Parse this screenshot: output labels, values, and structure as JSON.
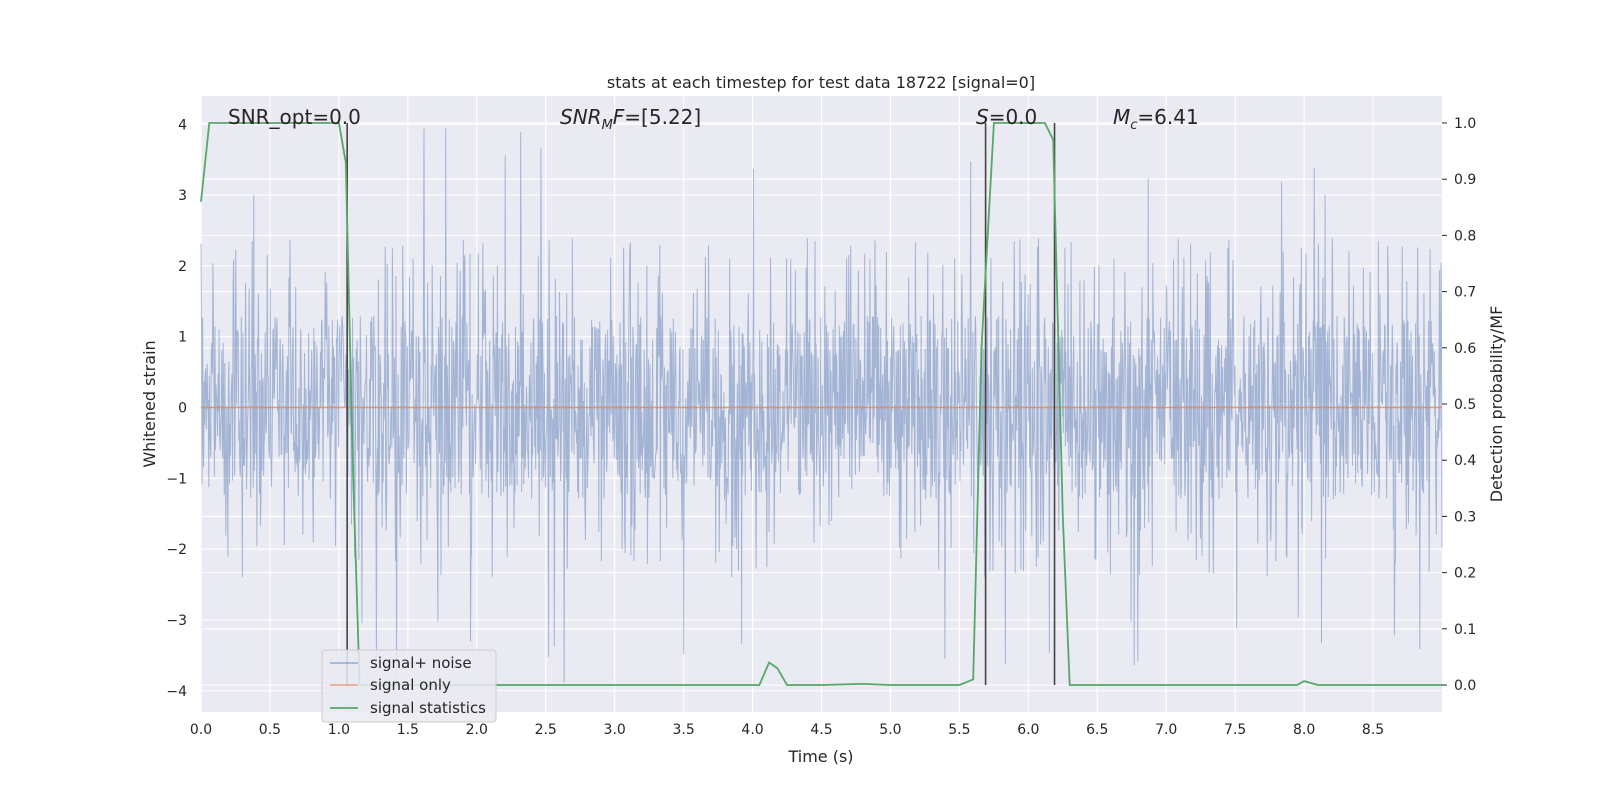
{
  "chart_data": {
    "type": "line",
    "title": "stats at each timestep for test data 18722 [signal=0]",
    "xlabel": "Time (s)",
    "ylabel": "Whitened strain",
    "y2label": "Detection probability/MF",
    "xlim": [
      0.0,
      9.0
    ],
    "ylim": [
      -4.3,
      4.4
    ],
    "y2lim": [
      -0.048,
      1.048
    ],
    "grid": true,
    "legend_position": "lower-left",
    "x_ticks": [
      "0.0",
      "0.5",
      "1.0",
      "1.5",
      "2.0",
      "2.5",
      "3.0",
      "3.5",
      "4.0",
      "4.5",
      "5.0",
      "5.5",
      "6.0",
      "6.5",
      "7.0",
      "7.5",
      "8.0",
      "8.5"
    ],
    "y_ticks": [
      "4",
      "3",
      "2",
      "1",
      "0",
      "−1",
      "−2",
      "−3",
      "−4"
    ],
    "y2_ticks": [
      "1.0",
      "0.9",
      "0.8",
      "0.7",
      "0.6",
      "0.5",
      "0.4",
      "0.3",
      "0.2",
      "0.1",
      "0.0"
    ],
    "annotations": {
      "snr_opt": "SNR_opt=0.0",
      "snr_mf_main": "SNR",
      "snr_mf_sub": "M",
      "snr_mf_italic": "F",
      "snr_mf_value": "=[5.22]",
      "s_label": "S",
      "s_value": "=0.0",
      "mc_main": "M",
      "mc_sub": "c",
      "mc_value": "=6.41"
    },
    "vertical_markers_s": [
      1.06,
      5.69,
      6.19
    ],
    "series": [
      {
        "name": "signal+ noise",
        "color": "#4c72b0",
        "description_note": "",
        "amplitude_envelope": {
          "typical_max": 2.3,
          "typical_min": -2.1,
          "peak_max": 4.0,
          "peak_min": -3.9
        }
      },
      {
        "name": "signal only",
        "color": "#dd8452",
        "x": [
          0.0,
          9.0
        ],
        "y": [
          0.0,
          0.0
        ]
      },
      {
        "name": "signal statistics",
        "color": "#55a868",
        "axis": "right",
        "x": [
          0.0,
          0.06,
          0.1,
          0.3,
          0.6,
          0.9,
          1.0,
          1.05,
          1.1,
          1.15,
          1.25,
          2.0,
          3.0,
          4.05,
          4.12,
          4.18,
          4.25,
          4.5,
          4.8,
          5.0,
          5.5,
          5.6,
          5.66,
          5.75,
          5.8,
          6.0,
          6.12,
          6.18,
          6.25,
          6.3,
          6.6,
          7.0,
          7.5,
          7.95,
          8.0,
          8.1,
          8.5,
          9.0
        ],
        "y": [
          0.86,
          1.0,
          1.0,
          1.0,
          1.0,
          1.0,
          1.0,
          0.93,
          0.4,
          0.0,
          0.0,
          0.0,
          0.0,
          0.0,
          0.04,
          0.03,
          0.0,
          0.0,
          0.002,
          0.0,
          0.0,
          0.01,
          0.6,
          1.0,
          1.0,
          1.0,
          1.0,
          0.97,
          0.3,
          0.0,
          0.0,
          0.0,
          0.0,
          0.0,
          0.007,
          0.0,
          0.0,
          0.0
        ]
      }
    ]
  },
  "legend": {
    "items": [
      "signal+ noise",
      "signal only",
      "signal statistics"
    ]
  },
  "colors": {
    "background": "#eaeaf2",
    "grid": "#ffffff",
    "noise": "#4c72b0",
    "signal": "#dd8452",
    "stat": "#55a868",
    "marker": "#444444"
  }
}
